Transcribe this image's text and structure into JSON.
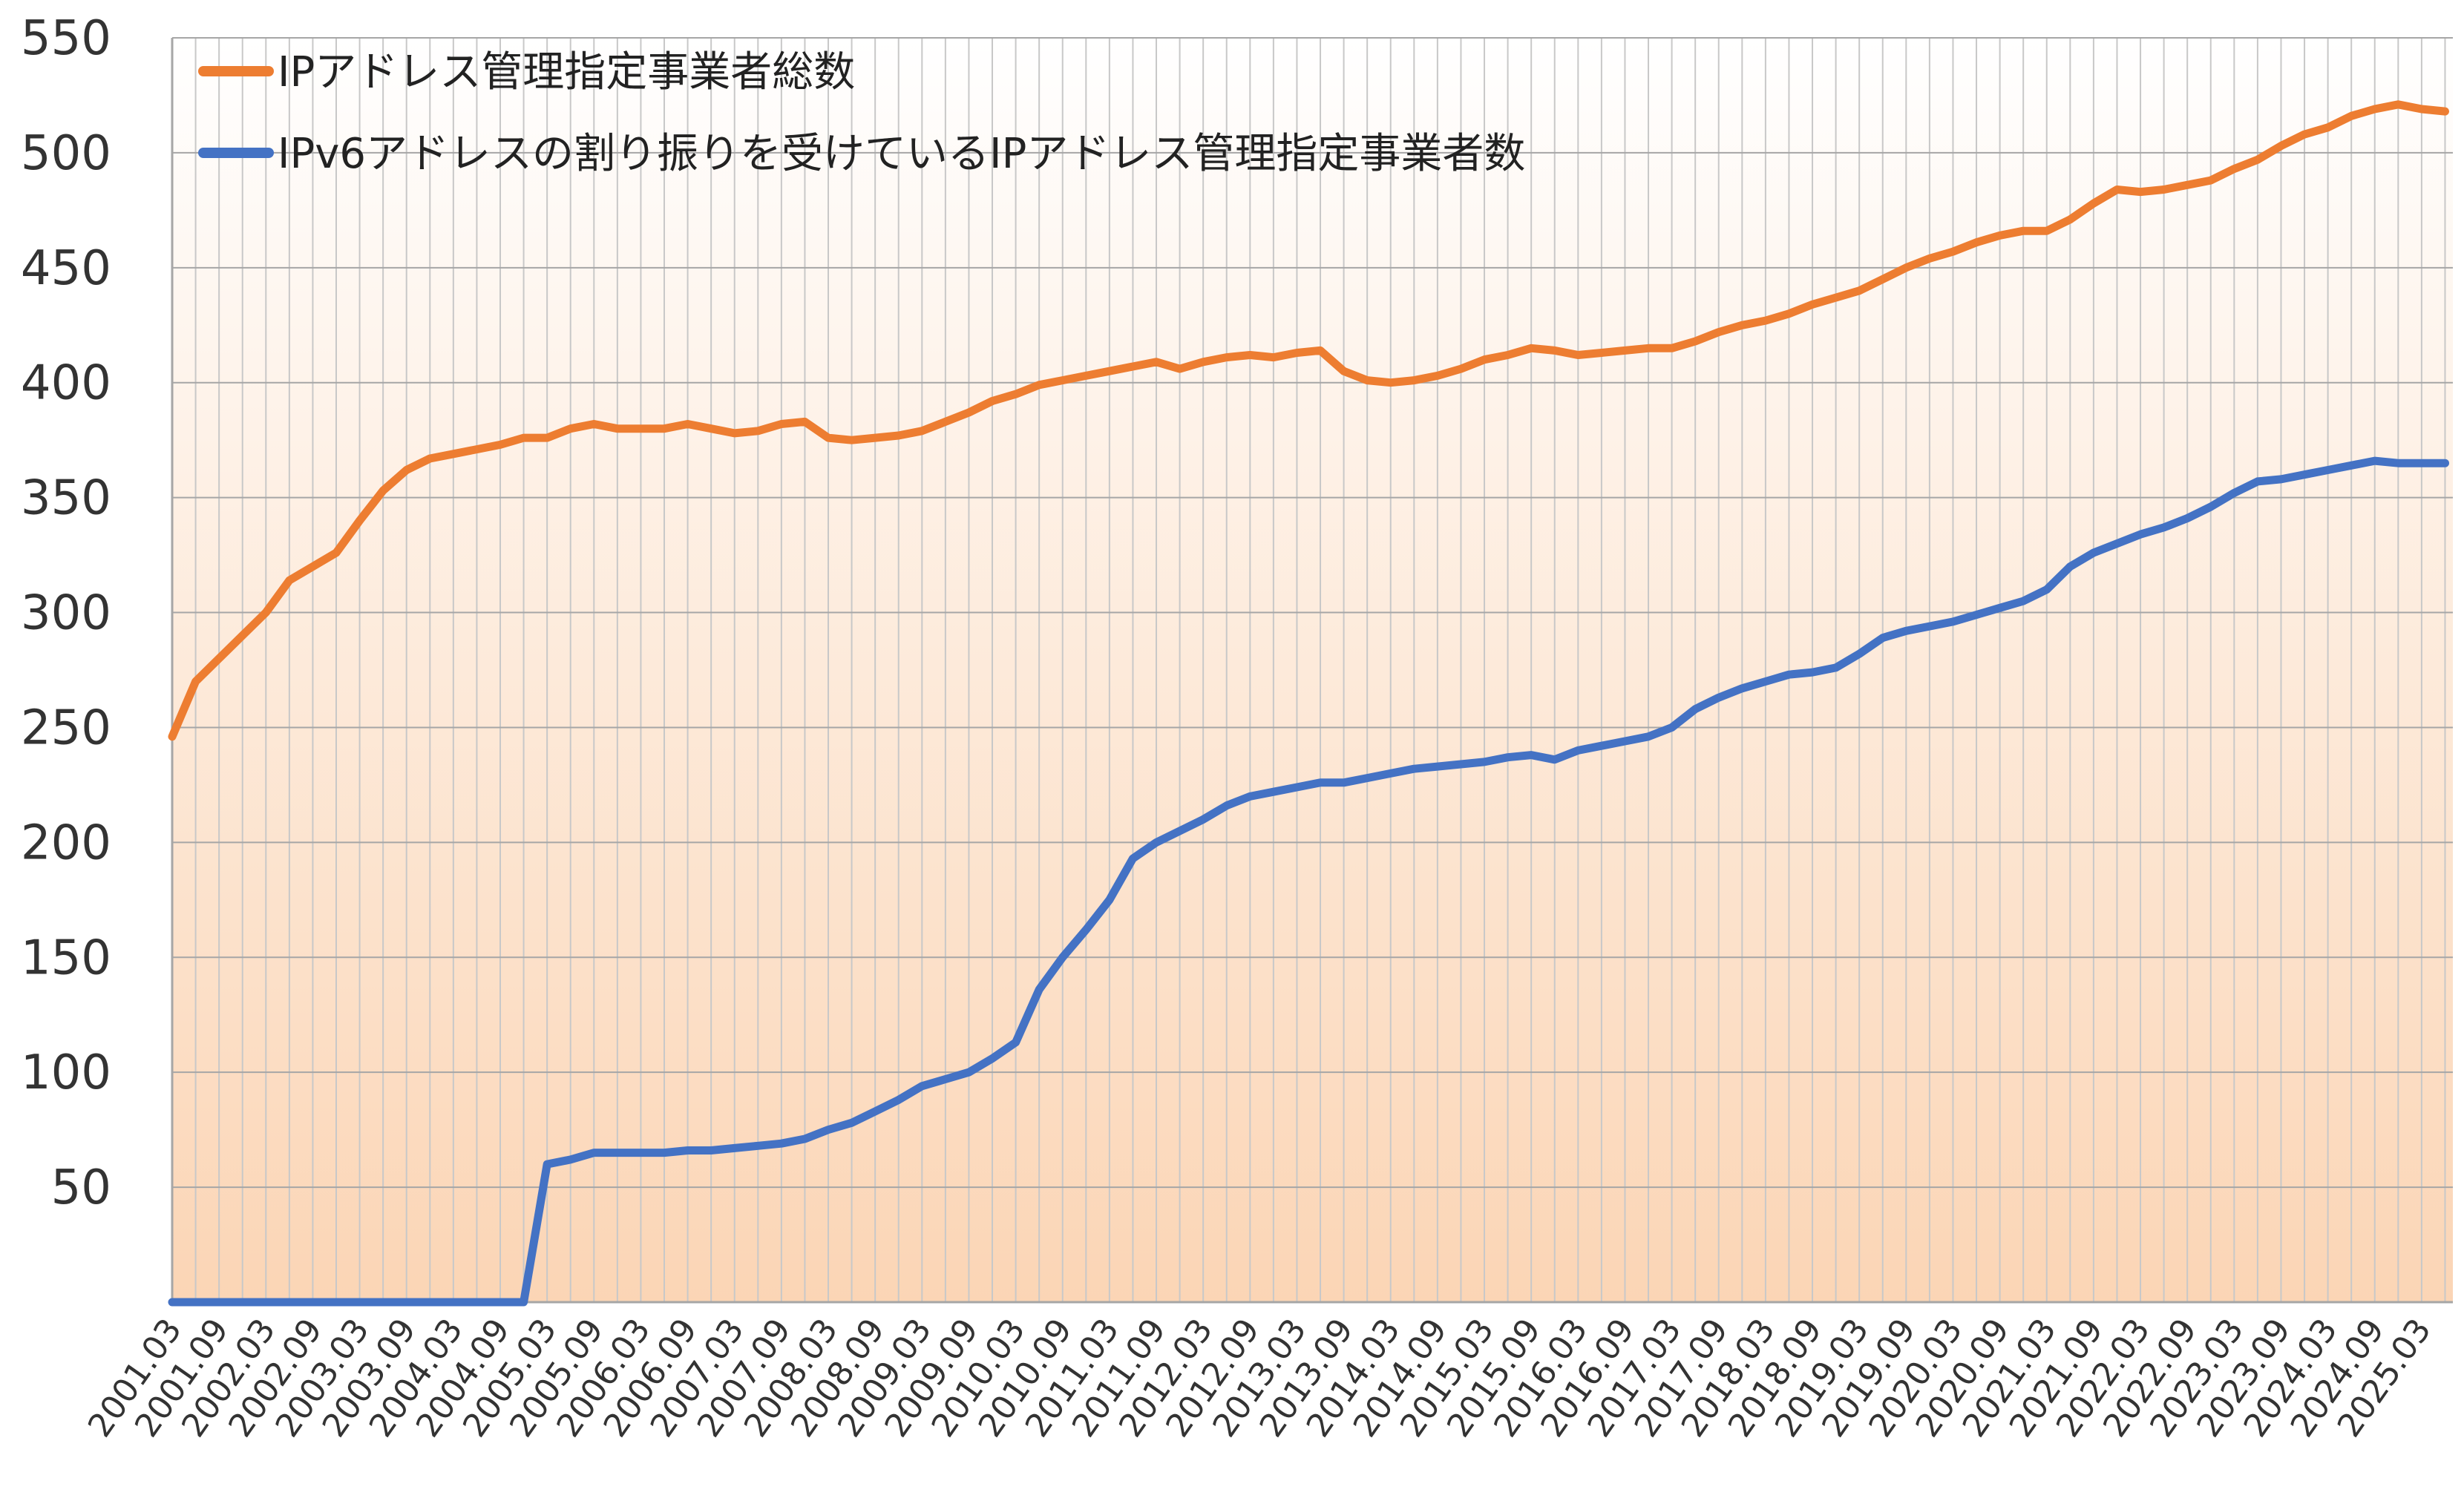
{
  "chart_data": {
    "type": "line",
    "title": "",
    "xlabel": "",
    "ylabel": "",
    "ylim": [
      0,
      550
    ],
    "y_ticks": [
      50,
      100,
      150,
      200,
      250,
      300,
      350,
      400,
      450,
      500,
      550
    ],
    "x_tick_labels": [
      "2001.03",
      "2001.09",
      "2002.03",
      "2002.09",
      "2003.03",
      "2003.09",
      "2004.03",
      "2004.09",
      "2005.03",
      "2005.09",
      "2006.03",
      "2006.09",
      "2007.03",
      "2007.09",
      "2008.03",
      "2008.09",
      "2009.03",
      "2009.09",
      "2010.03",
      "2010.09",
      "2011.03",
      "2011.09",
      "2012.03",
      "2012.09",
      "2013.03",
      "2013.09",
      "2014.03",
      "2014.09",
      "2015.03",
      "2015.09",
      "2016.03",
      "2016.09",
      "2017.03",
      "2017.09",
      "2018.03",
      "2018.09",
      "2019.03",
      "2019.09",
      "2020.03",
      "2020.09",
      "2021.03",
      "2021.09",
      "2022.03",
      "2022.09",
      "2023.03",
      "2023.09",
      "2024.03",
      "2024.09",
      "2025.03"
    ],
    "grid": true,
    "legend_position": "top-left",
    "background": "gradient light peach to white",
    "series": [
      {
        "name": "IPアドレス管理指定事業者総数",
        "color": "#ED7D31",
        "x": [
          "2001.03",
          "2001.06",
          "2001.09",
          "2001.12",
          "2002.03",
          "2002.06",
          "2002.09",
          "2002.12",
          "2003.03",
          "2003.06",
          "2003.09",
          "2003.12",
          "2004.03",
          "2004.06",
          "2004.09",
          "2004.12",
          "2005.03",
          "2005.06",
          "2005.09",
          "2005.12",
          "2006.03",
          "2006.06",
          "2006.09",
          "2006.12",
          "2007.03",
          "2007.06",
          "2007.09",
          "2007.12",
          "2008.03",
          "2008.06",
          "2008.09",
          "2008.12",
          "2009.03",
          "2009.06",
          "2009.09",
          "2009.12",
          "2010.03",
          "2010.06",
          "2010.09",
          "2010.12",
          "2011.03",
          "2011.06",
          "2011.09",
          "2011.12",
          "2012.03",
          "2012.06",
          "2012.09",
          "2012.12",
          "2013.03",
          "2013.06",
          "2013.09",
          "2013.12",
          "2014.03",
          "2014.06",
          "2014.09",
          "2014.12",
          "2015.03",
          "2015.06",
          "2015.09",
          "2015.12",
          "2016.03",
          "2016.06",
          "2016.09",
          "2016.12",
          "2017.03",
          "2017.06",
          "2017.09",
          "2017.12",
          "2018.03",
          "2018.06",
          "2018.09",
          "2018.12",
          "2019.03",
          "2019.06",
          "2019.09",
          "2019.12",
          "2020.03",
          "2020.06",
          "2020.09",
          "2020.12",
          "2021.03",
          "2021.06",
          "2021.09",
          "2021.12",
          "2022.03",
          "2022.06",
          "2022.09",
          "2022.12",
          "2023.03",
          "2023.06",
          "2023.09",
          "2023.12",
          "2024.03",
          "2024.06",
          "2024.09",
          "2024.12",
          "2025.03",
          "2025.06"
        ],
        "values": [
          246,
          270,
          280,
          290,
          300,
          314,
          320,
          326,
          340,
          353,
          362,
          367,
          369,
          371,
          373,
          376,
          376,
          380,
          382,
          380,
          380,
          380,
          382,
          380,
          378,
          379,
          382,
          383,
          376,
          375,
          376,
          377,
          379,
          383,
          387,
          392,
          395,
          399,
          401,
          403,
          405,
          407,
          409,
          406,
          409,
          411,
          412,
          411,
          413,
          414,
          405,
          401,
          400,
          401,
          403,
          406,
          410,
          412,
          415,
          414,
          412,
          413,
          414,
          415,
          415,
          418,
          422,
          425,
          427,
          430,
          434,
          437,
          440,
          445,
          450,
          454,
          457,
          461,
          464,
          466,
          466,
          471,
          478,
          484,
          483,
          484,
          486,
          488,
          493,
          497,
          503,
          508,
          511,
          516,
          519,
          521,
          519,
          518
        ]
      },
      {
        "name": "IPv6アドレスの割り振りを受けているIPアドレス管理指定事業者数",
        "color": "#4472C4",
        "x": [
          "2001.03",
          "2001.06",
          "2001.09",
          "2001.12",
          "2002.03",
          "2002.06",
          "2002.09",
          "2002.12",
          "2003.03",
          "2003.06",
          "2003.09",
          "2003.12",
          "2004.03",
          "2004.06",
          "2004.09",
          "2004.12",
          "2005.03",
          "2005.06",
          "2005.09",
          "2005.12",
          "2006.03",
          "2006.06",
          "2006.09",
          "2006.12",
          "2007.03",
          "2007.06",
          "2007.09",
          "2007.12",
          "2008.03",
          "2008.06",
          "2008.09",
          "2008.12",
          "2009.03",
          "2009.06",
          "2009.09",
          "2009.12",
          "2010.03",
          "2010.06",
          "2010.09",
          "2010.12",
          "2011.03",
          "2011.06",
          "2011.09",
          "2011.12",
          "2012.03",
          "2012.06",
          "2012.09",
          "2012.12",
          "2013.03",
          "2013.06",
          "2013.09",
          "2013.12",
          "2014.03",
          "2014.06",
          "2014.09",
          "2014.12",
          "2015.03",
          "2015.06",
          "2015.09",
          "2015.12",
          "2016.03",
          "2016.06",
          "2016.09",
          "2016.12",
          "2017.03",
          "2017.06",
          "2017.09",
          "2017.12",
          "2018.03",
          "2018.06",
          "2018.09",
          "2018.12",
          "2019.03",
          "2019.06",
          "2019.09",
          "2019.12",
          "2020.03",
          "2020.06",
          "2020.09",
          "2020.12",
          "2021.03",
          "2021.06",
          "2021.09",
          "2021.12",
          "2022.03",
          "2022.06",
          "2022.09",
          "2022.12",
          "2023.03",
          "2023.06",
          "2023.09",
          "2023.12",
          "2024.03",
          "2024.06",
          "2024.09",
          "2024.12",
          "2025.03",
          "2025.06"
        ],
        "values": [
          0,
          0,
          0,
          0,
          0,
          0,
          0,
          0,
          0,
          0,
          0,
          0,
          0,
          0,
          0,
          0,
          60,
          62,
          65,
          65,
          65,
          65,
          66,
          66,
          67,
          68,
          69,
          71,
          75,
          78,
          83,
          88,
          94,
          97,
          100,
          106,
          113,
          136,
          150,
          162,
          175,
          193,
          200,
          205,
          210,
          216,
          220,
          222,
          224,
          226,
          226,
          228,
          230,
          232,
          233,
          234,
          235,
          237,
          238,
          236,
          240,
          242,
          244,
          246,
          250,
          258,
          263,
          267,
          270,
          273,
          274,
          276,
          282,
          289,
          292,
          294,
          296,
          299,
          302,
          305,
          310,
          320,
          326,
          330,
          334,
          337,
          341,
          346,
          352,
          357,
          358,
          360,
          362,
          364,
          366,
          365,
          365,
          365
        ]
      }
    ]
  }
}
